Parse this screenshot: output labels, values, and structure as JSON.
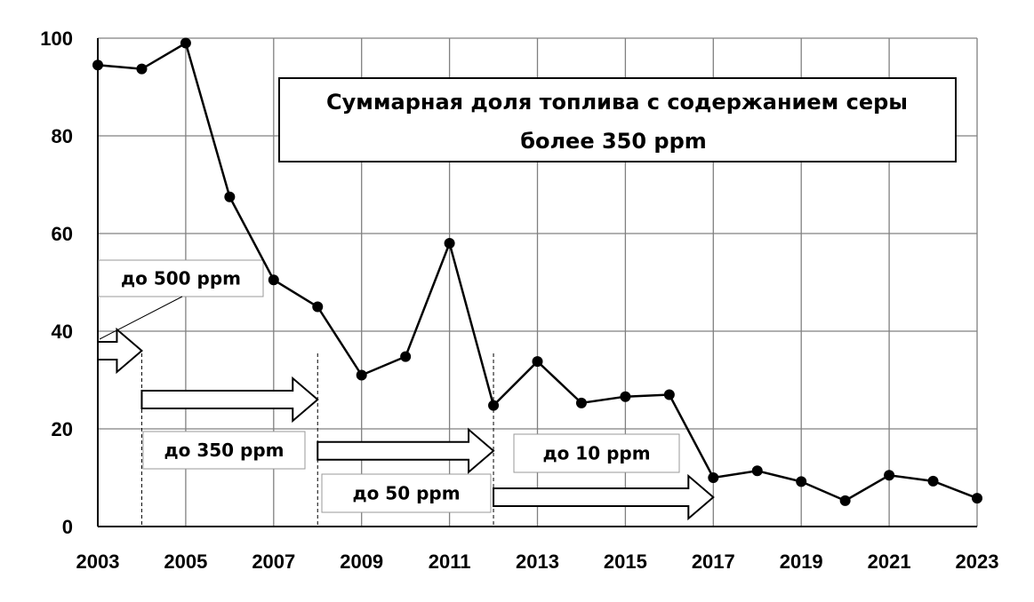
{
  "chart_data": {
    "type": "line",
    "title_lines": [
      "Суммарная доля топлива с содержанием серы",
      "более 350 ppm"
    ],
    "xlabel": "",
    "ylabel": "",
    "x": [
      2003,
      2004,
      2005,
      2006,
      2007,
      2008,
      2009,
      2010,
      2011,
      2012,
      2013,
      2014,
      2015,
      2016,
      2017,
      2018,
      2019,
      2020,
      2021,
      2022,
      2023
    ],
    "values": [
      94.5,
      93.7,
      99,
      67.5,
      50.5,
      45,
      31,
      34.8,
      58,
      24.8,
      33.8,
      25.3,
      26.6,
      27,
      10,
      11.4,
      9.2,
      5.3,
      10.5,
      9.3,
      5.8
    ],
    "xlim": [
      2003,
      2023
    ],
    "ylim": [
      0,
      100
    ],
    "x_ticks": [
      "2003",
      "2005",
      "2007",
      "2009",
      "2011",
      "2013",
      "2015",
      "2017",
      "2019",
      "2021",
      "2023"
    ],
    "y_ticks": [
      "0",
      "20",
      "40",
      "60",
      "80",
      "100"
    ],
    "grid": true,
    "color": "#000000",
    "annotations": [
      {
        "id": "limit-500",
        "text": "до 500 ppm",
        "arrow_from": 2003,
        "arrow_to": 2004,
        "arrow_y": 36
      },
      {
        "id": "limit-350",
        "text": "до 350 ppm",
        "arrow_from": 2004,
        "arrow_to": 2008,
        "arrow_y": 26
      },
      {
        "id": "limit-50",
        "text": "до 50 ppm",
        "arrow_from": 2008,
        "arrow_to": 2012,
        "arrow_y": 15.5
      },
      {
        "id": "limit-10",
        "text": "до 10 ppm",
        "arrow_from": 2012,
        "arrow_to": 2017,
        "arrow_y": 6
      }
    ]
  }
}
